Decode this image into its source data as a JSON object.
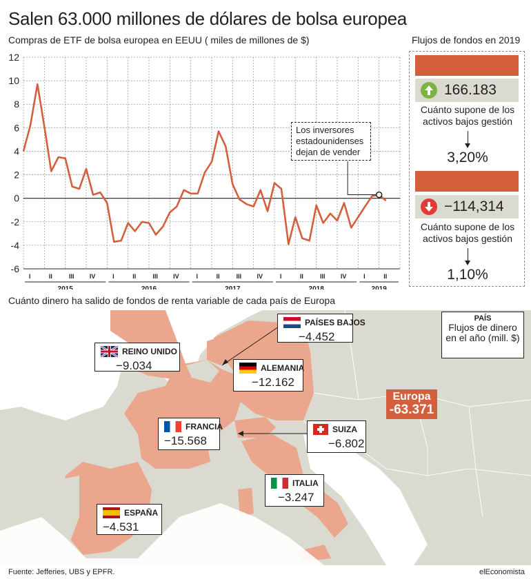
{
  "title": "Salen 63.000 millones de dólares de bolsa europea",
  "chart_data": {
    "type": "line",
    "title": "Compras de ETF de bolsa europea en EEUU ( miles de millones de $)",
    "ylim": [
      -6,
      12
    ],
    "yticks": [
      "-6",
      "-4",
      "-2",
      "0",
      "2",
      "4",
      "6",
      "8",
      "10",
      "12"
    ],
    "grid": true,
    "color": "#d45f3c",
    "x_quarter_labels": [
      "I",
      "II",
      "III",
      "IV",
      "I",
      "II",
      "III",
      "IV",
      "I",
      "II",
      "III",
      "IV",
      "I",
      "II",
      "III",
      "IV",
      "I",
      "II"
    ],
    "x_year_labels": [
      "2015",
      "2016",
      "2017",
      "2018",
      "2019"
    ],
    "x": [
      0,
      0.33,
      0.67,
      1,
      1.33,
      1.67,
      2,
      2.33,
      2.67,
      3,
      3.33,
      3.67,
      4,
      4.33,
      4.67,
      5,
      5.33,
      5.67,
      6,
      6.33,
      6.67,
      7,
      7.33,
      7.67,
      8,
      8.33,
      8.67,
      9,
      9.33,
      9.67,
      10,
      10.33,
      10.67,
      11,
      11.33,
      11.67,
      12,
      12.33,
      12.67,
      13,
      13.33,
      13.67,
      14,
      14.33,
      14.67,
      15,
      15.33,
      15.67,
      16,
      16.33,
      16.67,
      17,
      17.33
    ],
    "values": [
      4,
      6.2,
      9.7,
      6.1,
      2.3,
      3.5,
      3.4,
      1.0,
      0.8,
      2.5,
      0.3,
      0.5,
      -0.4,
      -3.7,
      -3.6,
      -2.1,
      -2.8,
      -2.0,
      -2.1,
      -3.1,
      -2.4,
      -1.2,
      -0.7,
      0.7,
      0.4,
      0.4,
      2.2,
      3.1,
      5.7,
      4.4,
      1.2,
      -0.1,
      -0.5,
      -0.7,
      0.7,
      -1.1,
      1.3,
      0.8,
      -3.9,
      -1.6,
      -3.4,
      -3.6,
      -0.6,
      -2.1,
      -1.3,
      -1.9,
      -0.4,
      -2.5,
      -1.6,
      -0.7,
      0.2,
      0.3,
      -0.2
    ],
    "annotation": "Los inversores estadounidenses dejan de vender"
  },
  "side_panel": {
    "title": "Flujos de fondos en 2019",
    "inflow": {
      "value": "166.183",
      "icon": "arrow-up-icon",
      "icon_color": "#7cb342"
    },
    "inflow_desc": "Cuánto supone de los activos bajos gestión",
    "inflow_pct": "3,20%",
    "outflow": {
      "value": "−114,314",
      "icon": "arrow-down-icon",
      "icon_color": "#e53935"
    },
    "outflow_desc": "Cuánto supone de los activos bajos gestión",
    "outflow_pct": "1,10%"
  },
  "map": {
    "title": "Cuánto dinero ha salido de fondos de renta variable de cada país de Europa",
    "legend": {
      "heading": "PAÍS",
      "text": "Flujos de dinero en el año (mill. $)"
    },
    "europe": {
      "label": "Europa",
      "value": "-63.371"
    },
    "countries": [
      {
        "name": "PAÍSES BAJOS",
        "value": "−4.452",
        "flag": "netherlands-flag-icon"
      },
      {
        "name": "REINO UNIDO",
        "value": "−9.034",
        "flag": "uk-flag-icon"
      },
      {
        "name": "ALEMANIA",
        "value": "−12.162",
        "flag": "germany-flag-icon"
      },
      {
        "name": "FRANCIA",
        "value": "−15.568",
        "flag": "france-flag-icon"
      },
      {
        "name": "SUIZA",
        "value": "−6.802",
        "flag": "switzerland-flag-icon"
      },
      {
        "name": "ITALIA",
        "value": "−3.247",
        "flag": "italy-flag-icon"
      },
      {
        "name": "ESPAÑA",
        "value": "−4.531",
        "flag": "spain-flag-icon"
      }
    ]
  },
  "colors": {
    "accent": "#d45f3c",
    "highlight": "#eaa78d",
    "land": "#dadad0",
    "sea": "#ffffff"
  },
  "footer": {
    "source": "Fuente: Jefferies, UBS y EPFR.",
    "brand": "elEconomista"
  }
}
